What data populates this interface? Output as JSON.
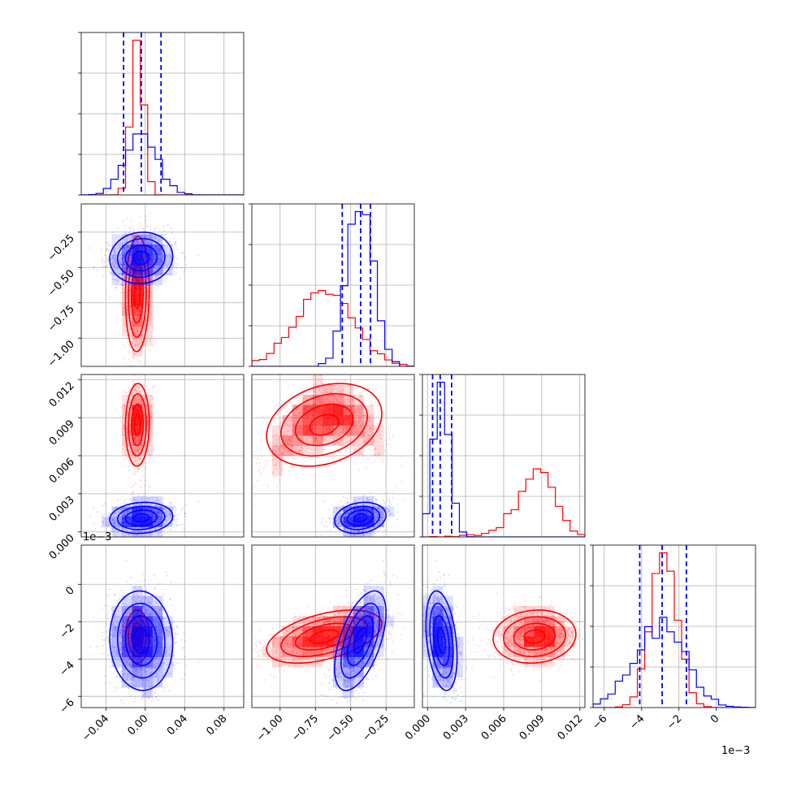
{
  "chart_data": {
    "type": "corner",
    "grid": true,
    "colors": {
      "series_a": "#0000ff",
      "series_b": "#ff0000"
    },
    "params": [
      {
        "range": [
          -0.065,
          0.1
        ],
        "ticks": [
          -0.04,
          0.0,
          0.04,
          0.08
        ],
        "tick_labels": [
          "−0.04",
          "0.00",
          "0.04",
          "0.08"
        ]
      },
      {
        "range": [
          -1.2,
          -0.05
        ],
        "ticks": [
          -1.0,
          -0.75,
          -0.5,
          -0.25
        ],
        "tick_labels": [
          "−1.00",
          "−0.75",
          "−0.50",
          "−0.25"
        ]
      },
      {
        "range": [
          -0.0004,
          0.0124
        ],
        "ticks": [
          0.0,
          0.003,
          0.006,
          0.009,
          0.012
        ],
        "tick_labels": [
          "0.000",
          "0.003",
          "0.006",
          "0.009",
          "0.012"
        ]
      },
      {
        "range": [
          -0.0066,
          0.0021
        ],
        "ticks": [
          -0.006,
          -0.004,
          -0.002,
          0.0
        ],
        "tick_labels": [
          "−6",
          "−4",
          "−2",
          "0"
        ],
        "offset_label": "1e−3"
      }
    ],
    "quantiles_blue": [
      [
        -0.022,
        -0.004,
        0.016
      ],
      [
        -0.56,
        -0.43,
        -0.36
      ],
      [
        0.0004,
        0.001,
        0.0019
      ],
      [
        -0.0041,
        -0.0029,
        -0.0016
      ]
    ],
    "samples": {
      "blue": {
        "mean": [
          -0.004,
          -0.43,
          0.0011,
          -0.003
        ],
        "sd": [
          0.016,
          0.09,
          0.0006,
          0.0013
        ],
        "corr": [
          [
            1,
            0.05,
            0.08,
            -0.05
          ],
          [
            0.05,
            1,
            0.2,
            0.55
          ],
          [
            0.08,
            0.2,
            1,
            -0.3
          ],
          [
            -0.05,
            0.55,
            -0.3,
            1
          ]
        ]
      },
      "red": {
        "mean": [
          -0.008,
          -0.69,
          0.0091,
          -0.0028
        ],
        "sd": [
          0.006,
          0.2,
          0.0013,
          0.0007
        ],
        "corr": [
          [
            1,
            0.1,
            0.05,
            0
          ],
          [
            0.1,
            1,
            0.3,
            0.45
          ],
          [
            0.05,
            0.3,
            1,
            0.05
          ],
          [
            0,
            0.45,
            0.05,
            1
          ]
        ]
      }
    }
  }
}
